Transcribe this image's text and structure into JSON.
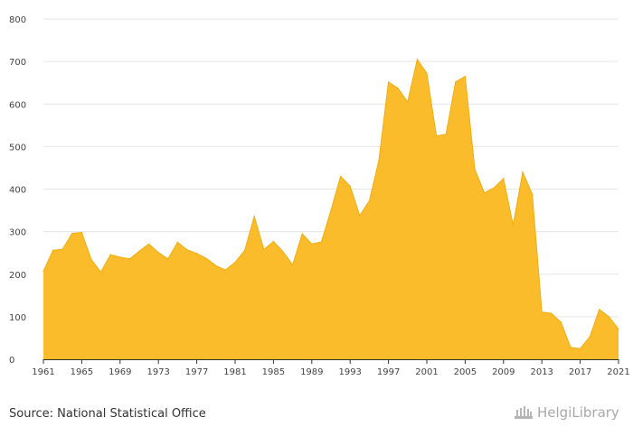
{
  "source": "Source: National Statistical Office",
  "logo_text": "HelgiLibrary",
  "chart_data": {
    "type": "area",
    "title": "",
    "xlabel": "",
    "ylabel": "",
    "ylim": [
      0,
      800
    ],
    "yticks": [
      0,
      100,
      200,
      300,
      400,
      500,
      600,
      700,
      800
    ],
    "xticks": [
      1961,
      1965,
      1969,
      1973,
      1977,
      1981,
      1985,
      1989,
      1993,
      1997,
      2001,
      2005,
      2009,
      2013,
      2017,
      2021
    ],
    "grid": true,
    "color": "#fbbc2b",
    "stroke": "#f2ad0f",
    "x": [
      1961,
      1962,
      1963,
      1964,
      1965,
      1966,
      1967,
      1968,
      1969,
      1970,
      1971,
      1972,
      1973,
      1974,
      1975,
      1976,
      1977,
      1978,
      1979,
      1980,
      1981,
      1982,
      1983,
      1984,
      1985,
      1986,
      1987,
      1988,
      1989,
      1990,
      1991,
      1992,
      1993,
      1994,
      1995,
      1996,
      1997,
      1998,
      1999,
      2000,
      2001,
      2002,
      2003,
      2004,
      2005,
      2006,
      2007,
      2008,
      2009,
      2010,
      2011,
      2012,
      2013,
      2014,
      2015,
      2016,
      2017,
      2018,
      2019,
      2020,
      2021
    ],
    "values": [
      207,
      256,
      259,
      296,
      298,
      234,
      205,
      246,
      240,
      236,
      254,
      271,
      251,
      236,
      275,
      257,
      249,
      237,
      220,
      210,
      228,
      256,
      336,
      258,
      277,
      253,
      222,
      295,
      271,
      276,
      350,
      430,
      407,
      338,
      372,
      468,
      652,
      637,
      605,
      705,
      672,
      525,
      529,
      652,
      665,
      447,
      391,
      403,
      425,
      315,
      440,
      388,
      111,
      108,
      87,
      28,
      25,
      53,
      117,
      100,
      71
    ]
  }
}
